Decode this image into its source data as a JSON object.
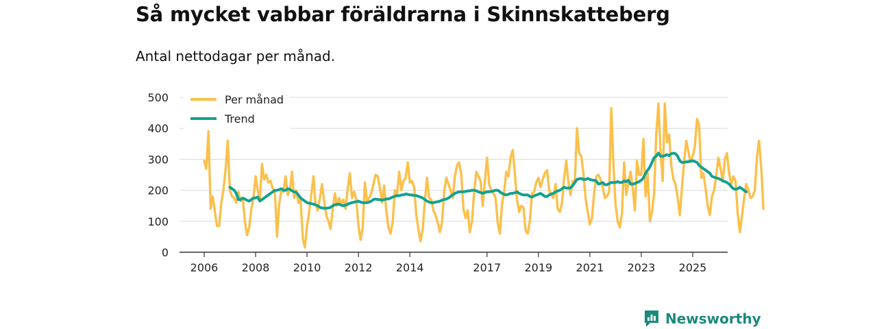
{
  "header": {
    "title": "Så mycket vabbar föräldrarna i Skinnskatteberg",
    "subtitle": "Antal nettodagar per månad."
  },
  "brand": {
    "name": "Newsworthy",
    "icon": "newsworthy-logo-icon",
    "color": "#1a8a7c"
  },
  "chart_data": {
    "type": "line",
    "title": "Så mycket vabbar föräldrarna i Skinnskatteberg",
    "subtitle": "Antal nettodagar per månad.",
    "xlabel": "",
    "ylabel": "",
    "xlim": [
      2005.5,
      2026.0
    ],
    "ylim": [
      0,
      500
    ],
    "y_ticks": [
      0,
      100,
      200,
      300,
      400,
      500
    ],
    "x_ticks": [
      2006,
      2008,
      2010,
      2012,
      2014,
      2017,
      2019,
      2021,
      2023,
      2025
    ],
    "grid": true,
    "legend": {
      "position": "top-left",
      "entries": [
        "Per månad",
        "Trend"
      ]
    },
    "series": [
      {
        "name": "Per månad",
        "color": "#fbc04b",
        "x_start": 2006.0,
        "step": 0.0833333,
        "values": [
          295,
          270,
          390,
          140,
          180,
          130,
          85,
          85,
          160,
          200,
          270,
          360,
          200,
          180,
          175,
          160,
          195,
          165,
          175,
          100,
          55,
          80,
          140,
          175,
          245,
          200,
          170,
          285,
          235,
          250,
          225,
          230,
          205,
          195,
          50,
          155,
          200,
          195,
          245,
          185,
          200,
          260,
          175,
          200,
          160,
          170,
          45,
          15,
          85,
          130,
          185,
          245,
          155,
          135,
          175,
          220,
          165,
          120,
          100,
          75,
          140,
          190,
          150,
          175,
          155,
          170,
          140,
          205,
          255,
          175,
          195,
          170,
          85,
          40,
          80,
          225,
          165,
          175,
          190,
          220,
          250,
          245,
          210,
          160,
          215,
          135,
          80,
          60,
          100,
          200,
          185,
          260,
          200,
          230,
          240,
          290,
          225,
          230,
          210,
          120,
          75,
          35,
          75,
          165,
          240,
          175,
          170,
          135,
          120,
          95,
          65,
          95,
          195,
          240,
          220,
          200,
          175,
          245,
          280,
          290,
          250,
          140,
          110,
          135,
          65,
          100,
          195,
          260,
          245,
          230,
          150,
          230,
          305,
          220,
          200,
          190,
          175,
          95,
          60,
          155,
          195,
          260,
          245,
          305,
          330,
          255,
          170,
          130,
          150,
          145,
          70,
          60,
          100,
          190,
          195,
          225,
          240,
          210,
          235,
          255,
          265,
          200,
          185,
          175,
          220,
          140,
          130,
          160,
          240,
          295,
          225,
          185,
          230,
          225,
          400,
          320,
          310,
          255,
          175,
          130,
          90,
          110,
          190,
          245,
          250,
          235,
          210,
          175,
          180,
          195,
          465,
          285,
          155,
          100,
          80,
          125,
          290,
          185,
          225,
          260,
          210,
          135,
          295,
          250,
          250,
          365,
          180,
          255,
          100,
          130,
          190,
          380,
          480,
          325,
          230,
          480,
          355,
          380,
          280,
          235,
          220,
          175,
          120,
          210,
          295,
          360,
          325,
          290,
          310,
          340,
          430,
          410,
          240,
          255,
          205,
          150,
          120,
          180,
          200,
          250,
          305,
          270,
          230,
          300,
          320,
          255,
          220,
          245,
          230,
          125,
          65,
          115,
          175,
          220,
          200,
          175,
          180,
          200,
          310,
          360,
          270,
          140
        ]
      },
      {
        "name": "Trend",
        "color": "#14a090",
        "x_start": 2007.0,
        "step": 0.0833333,
        "values": [
          210,
          205,
          200,
          190,
          170,
          170,
          175,
          172,
          168,
          165,
          170,
          175,
          175,
          178,
          165,
          170,
          175,
          180,
          185,
          190,
          195,
          200,
          200,
          202,
          205,
          200,
          200,
          205,
          203,
          198,
          195,
          193,
          185,
          175,
          170,
          165,
          160,
          158,
          157,
          155,
          153,
          150,
          145,
          143,
          142,
          142,
          143,
          145,
          150,
          153,
          155,
          155,
          152,
          150,
          152,
          155,
          158,
          160,
          162,
          163,
          165,
          162,
          160,
          160,
          160,
          162,
          165,
          170,
          172,
          170,
          170,
          168,
          170,
          172,
          172,
          175,
          178,
          180,
          183,
          182,
          185,
          185,
          188,
          187,
          185,
          185,
          183,
          183,
          180,
          178,
          175,
          170,
          165,
          162,
          160,
          160,
          162,
          163,
          165,
          168,
          170,
          172,
          175,
          180,
          185,
          190,
          193,
          195,
          195,
          195,
          196,
          198,
          198,
          200,
          200,
          198,
          195,
          193,
          190,
          193,
          195,
          195,
          196,
          198,
          200,
          200,
          195,
          190,
          187,
          185,
          187,
          190,
          190,
          192,
          195,
          190,
          187,
          185,
          185,
          185,
          180,
          178,
          182,
          185,
          187,
          190,
          185,
          180,
          180,
          185,
          188,
          190,
          195,
          198,
          200,
          205,
          210,
          207,
          207,
          208,
          215,
          225,
          235,
          237,
          238,
          235,
          235,
          238,
          235,
          233,
          232,
          230,
          220,
          222,
          225,
          218,
          218,
          222,
          225,
          225,
          225,
          228,
          225,
          225,
          230,
          228,
          232,
          220,
          220,
          222,
          225,
          228,
          232,
          240,
          255,
          265,
          275,
          290,
          305,
          310,
          320,
          310,
          310,
          312,
          315,
          312,
          318,
          320,
          318,
          310,
          295,
          290,
          290,
          292,
          292,
          295,
          295,
          293,
          290,
          280,
          275,
          270,
          265,
          260,
          255,
          245,
          242,
          240,
          238,
          235,
          230,
          228,
          225,
          220,
          212,
          205,
          203,
          205,
          210,
          205,
          200,
          195
        ]
      }
    ]
  }
}
